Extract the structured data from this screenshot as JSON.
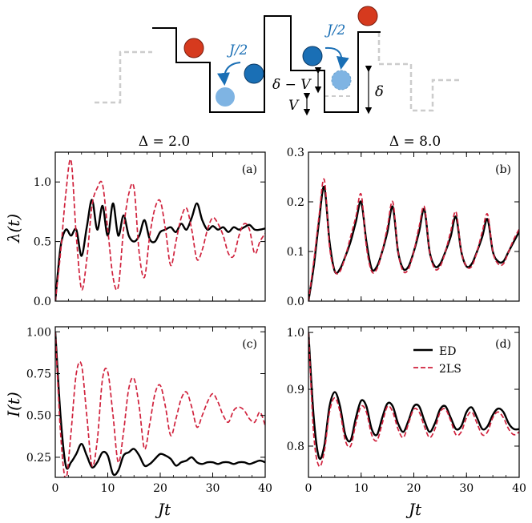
{
  "schematic": {
    "hop_label_left": "J/2",
    "hop_label_right": "J/2",
    "label_delta_minus_v": "δ − V",
    "label_v": "V",
    "label_delta": "δ",
    "colors": {
      "particle_red": "#d63a1e",
      "particle_blue": "#1a6fb5",
      "particle_blue_faded": "#7fb4e3",
      "arrow": "#1a6fb5",
      "dashed_steps": "#cccccc"
    }
  },
  "column_titles": [
    "Δ = 2.0",
    "Δ = 8.0"
  ],
  "axes_labels": {
    "x": "Jt",
    "y_top": "λ(t)",
    "y_bottom": "I(t)"
  },
  "legend": {
    "entries": [
      "ED",
      "2LS"
    ],
    "placement": "upper-right of panel (d)"
  },
  "series_style": {
    "ED": {
      "color": "#000000",
      "dash": "solid"
    },
    "2LS": {
      "color": "#d0213c",
      "dash": "dashed"
    }
  },
  "chart_data": [
    {
      "type": "line",
      "panel": "(a)",
      "title": "Δ = 2.0",
      "xlabel": "",
      "ylabel": "λ(t)",
      "xlim": [
        0,
        40
      ],
      "ylim": [
        0,
        1.25
      ],
      "xticks": [
        0,
        10,
        20,
        30,
        40
      ],
      "yticks": [
        0.0,
        0.5,
        1.0
      ],
      "ytick_labels": [
        "0.0",
        "0.5",
        "1.0"
      ],
      "xtick_labels": [],
      "series": [
        {
          "name": "ED",
          "x": [
            0,
            1,
            2,
            3,
            4,
            5,
            6,
            7,
            8,
            9,
            10,
            11,
            12,
            13,
            14,
            15,
            16,
            17,
            18,
            19,
            20,
            21,
            22,
            23,
            24,
            25,
            26,
            27,
            28,
            29,
            30,
            31,
            32,
            33,
            34,
            35,
            36,
            37,
            38,
            39,
            40
          ],
          "y": [
            0,
            0.45,
            0.6,
            0.55,
            0.6,
            0.38,
            0.62,
            0.85,
            0.6,
            0.8,
            0.55,
            0.82,
            0.55,
            0.72,
            0.55,
            0.5,
            0.55,
            0.68,
            0.52,
            0.5,
            0.58,
            0.6,
            0.62,
            0.58,
            0.65,
            0.6,
            0.7,
            0.82,
            0.68,
            0.6,
            0.63,
            0.6,
            0.62,
            0.58,
            0.62,
            0.6,
            0.62,
            0.64,
            0.6,
            0.6,
            0.61
          ]
        },
        {
          "name": "2LS",
          "x": [
            0,
            1,
            2,
            3,
            4,
            5,
            6,
            7,
            8,
            9,
            10,
            11,
            12,
            13,
            14,
            15,
            16,
            17,
            18,
            19,
            20,
            21,
            22,
            23,
            24,
            25,
            26,
            27,
            28,
            29,
            30,
            31,
            32,
            33,
            34,
            35,
            36,
            37,
            38,
            39,
            40
          ],
          "y": [
            0,
            0.4,
            0.9,
            1.18,
            0.55,
            0.1,
            0.35,
            0.8,
            0.95,
            0.98,
            0.6,
            0.2,
            0.12,
            0.6,
            0.9,
            0.95,
            0.4,
            0.2,
            0.55,
            0.78,
            0.84,
            0.6,
            0.3,
            0.5,
            0.7,
            0.78,
            0.6,
            0.35,
            0.43,
            0.6,
            0.7,
            0.65,
            0.55,
            0.4,
            0.38,
            0.55,
            0.65,
            0.6,
            0.4,
            0.5,
            0.57
          ]
        }
      ]
    },
    {
      "type": "line",
      "panel": "(b)",
      "title": "Δ = 8.0",
      "xlabel": "",
      "ylabel": "",
      "xlim": [
        0,
        40
      ],
      "ylim": [
        0,
        0.3
      ],
      "xticks": [
        0,
        10,
        20,
        30,
        40
      ],
      "yticks": [
        0.0,
        0.1,
        0.2,
        0.3
      ],
      "ytick_labels": [
        "0.0",
        "0.1",
        "0.2",
        "0.3"
      ],
      "xtick_labels": [],
      "series": [
        {
          "name": "ED",
          "x": [
            0,
            1,
            2,
            3,
            4,
            5,
            6,
            7,
            8,
            9,
            10,
            11,
            12,
            13,
            14,
            15,
            16,
            17,
            18,
            19,
            20,
            21,
            22,
            23,
            24,
            25,
            26,
            27,
            28,
            29,
            30,
            31,
            32,
            33,
            34,
            35,
            36,
            37,
            38,
            39,
            40
          ],
          "y": [
            0,
            0.07,
            0.16,
            0.23,
            0.12,
            0.06,
            0.065,
            0.09,
            0.12,
            0.16,
            0.2,
            0.12,
            0.065,
            0.07,
            0.1,
            0.14,
            0.19,
            0.1,
            0.065,
            0.07,
            0.1,
            0.14,
            0.185,
            0.1,
            0.07,
            0.075,
            0.1,
            0.13,
            0.17,
            0.1,
            0.07,
            0.075,
            0.1,
            0.13,
            0.165,
            0.1,
            0.08,
            0.08,
            0.1,
            0.12,
            0.14
          ]
        },
        {
          "name": "2LS",
          "x": [
            0,
            1,
            2,
            3,
            4,
            5,
            6,
            7,
            8,
            9,
            10,
            11,
            12,
            13,
            14,
            15,
            16,
            17,
            18,
            19,
            20,
            21,
            22,
            23,
            24,
            25,
            26,
            27,
            28,
            29,
            30,
            31,
            32,
            33,
            34,
            35,
            36,
            37,
            38,
            39,
            40
          ],
          "y": [
            0,
            0.08,
            0.17,
            0.245,
            0.11,
            0.06,
            0.06,
            0.09,
            0.13,
            0.17,
            0.215,
            0.11,
            0.06,
            0.065,
            0.1,
            0.15,
            0.2,
            0.1,
            0.06,
            0.065,
            0.1,
            0.15,
            0.19,
            0.1,
            0.065,
            0.07,
            0.1,
            0.14,
            0.18,
            0.1,
            0.07,
            0.07,
            0.1,
            0.14,
            0.175,
            0.1,
            0.075,
            0.075,
            0.1,
            0.125,
            0.145
          ]
        }
      ]
    },
    {
      "type": "line",
      "panel": "(c)",
      "title": "",
      "xlabel": "Jt",
      "ylabel": "I(t)",
      "xlim": [
        0,
        40
      ],
      "ylim": [
        0.13,
        1.03
      ],
      "xticks": [
        0,
        10,
        20,
        30,
        40
      ],
      "yticks": [
        0.25,
        0.5,
        0.75,
        1.0
      ],
      "ytick_labels": [
        "0.25",
        "0.50",
        "0.75",
        "1.00"
      ],
      "xtick_labels": [
        "0",
        "10",
        "20",
        "30",
        "40"
      ],
      "series": [
        {
          "name": "ED",
          "x": [
            0,
            1,
            2,
            3,
            4,
            5,
            6,
            7,
            8,
            9,
            10,
            11,
            12,
            13,
            14,
            15,
            16,
            17,
            18,
            19,
            20,
            21,
            22,
            23,
            24,
            25,
            26,
            27,
            28,
            29,
            30,
            31,
            32,
            33,
            34,
            35,
            36,
            37,
            38,
            39,
            40
          ],
          "y": [
            1.0,
            0.5,
            0.2,
            0.22,
            0.27,
            0.33,
            0.26,
            0.19,
            0.22,
            0.28,
            0.26,
            0.15,
            0.17,
            0.26,
            0.28,
            0.3,
            0.26,
            0.2,
            0.21,
            0.24,
            0.27,
            0.26,
            0.24,
            0.2,
            0.22,
            0.23,
            0.25,
            0.22,
            0.21,
            0.22,
            0.22,
            0.21,
            0.22,
            0.22,
            0.21,
            0.22,
            0.22,
            0.21,
            0.22,
            0.23,
            0.22
          ]
        },
        {
          "name": "2LS",
          "x": [
            0,
            1,
            2,
            3,
            4,
            5,
            6,
            7,
            8,
            9,
            10,
            11,
            12,
            13,
            14,
            15,
            16,
            17,
            18,
            19,
            20,
            21,
            22,
            23,
            24,
            25,
            26,
            27,
            28,
            29,
            30,
            31,
            32,
            33,
            34,
            35,
            36,
            37,
            38,
            39,
            40
          ],
          "y": [
            1.0,
            0.4,
            0.12,
            0.4,
            0.75,
            0.8,
            0.5,
            0.2,
            0.35,
            0.72,
            0.76,
            0.5,
            0.22,
            0.4,
            0.66,
            0.72,
            0.55,
            0.3,
            0.45,
            0.63,
            0.68,
            0.55,
            0.38,
            0.48,
            0.6,
            0.64,
            0.55,
            0.43,
            0.5,
            0.58,
            0.63,
            0.58,
            0.5,
            0.46,
            0.53,
            0.55,
            0.53,
            0.48,
            0.46,
            0.52,
            0.44
          ]
        }
      ]
    },
    {
      "type": "line",
      "panel": "(d)",
      "title": "",
      "xlabel": "Jt",
      "ylabel": "",
      "xlim": [
        0,
        40
      ],
      "ylim": [
        0.745,
        1.01
      ],
      "xticks": [
        0,
        10,
        20,
        30,
        40
      ],
      "yticks": [
        0.8,
        0.9,
        1.0
      ],
      "ytick_labels": [
        "0.8",
        "0.9",
        "1.0"
      ],
      "xtick_labels": [
        "0",
        "10",
        "20",
        "30",
        "40"
      ],
      "series": [
        {
          "name": "ED",
          "x": [
            0,
            1,
            2,
            3,
            4,
            5,
            6,
            7,
            8,
            9,
            10,
            11,
            12,
            13,
            14,
            15,
            16,
            17,
            18,
            19,
            20,
            21,
            22,
            23,
            24,
            25,
            26,
            27,
            28,
            29,
            30,
            31,
            32,
            33,
            34,
            35,
            36,
            37,
            38,
            39,
            40
          ],
          "y": [
            1.0,
            0.85,
            0.78,
            0.8,
            0.87,
            0.895,
            0.87,
            0.82,
            0.81,
            0.85,
            0.88,
            0.87,
            0.83,
            0.82,
            0.85,
            0.875,
            0.87,
            0.84,
            0.825,
            0.845,
            0.87,
            0.87,
            0.845,
            0.825,
            0.84,
            0.865,
            0.87,
            0.85,
            0.83,
            0.835,
            0.86,
            0.868,
            0.85,
            0.83,
            0.835,
            0.855,
            0.866,
            0.86,
            0.84,
            0.83,
            0.83
          ]
        },
        {
          "name": "2LS",
          "x": [
            0,
            1,
            2,
            3,
            4,
            5,
            6,
            7,
            8,
            9,
            10,
            11,
            12,
            13,
            14,
            15,
            16,
            17,
            18,
            19,
            20,
            21,
            22,
            23,
            24,
            25,
            26,
            27,
            28,
            29,
            30,
            31,
            32,
            33,
            34,
            35,
            36,
            37,
            38,
            39,
            40
          ],
          "y": [
            1.0,
            0.82,
            0.765,
            0.79,
            0.86,
            0.885,
            0.86,
            0.81,
            0.8,
            0.84,
            0.87,
            0.86,
            0.82,
            0.81,
            0.84,
            0.87,
            0.86,
            0.83,
            0.815,
            0.84,
            0.865,
            0.86,
            0.835,
            0.815,
            0.83,
            0.86,
            0.865,
            0.845,
            0.82,
            0.825,
            0.85,
            0.86,
            0.84,
            0.82,
            0.825,
            0.85,
            0.86,
            0.85,
            0.83,
            0.82,
            0.825
          ]
        }
      ]
    }
  ],
  "panel_labels": [
    "(a)",
    "(b)",
    "(c)",
    "(d)"
  ]
}
